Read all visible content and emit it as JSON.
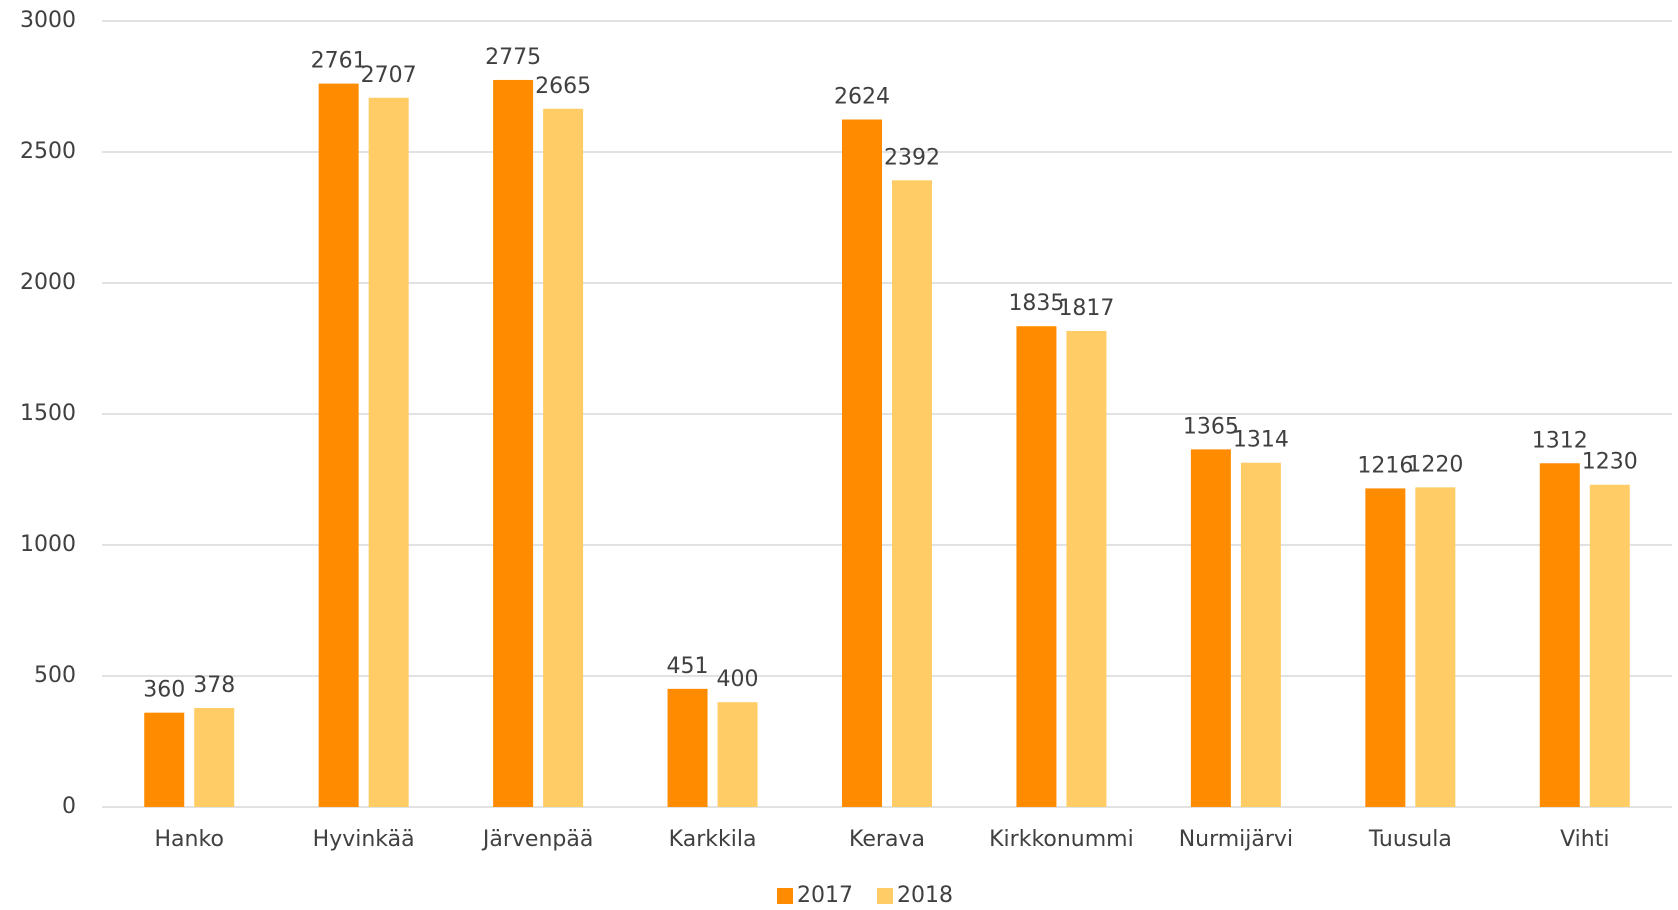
{
  "chart_data": {
    "type": "bar",
    "categories": [
      "Hanko",
      "Hyvinkää",
      "Järvenpää",
      "Karkkila",
      "Kerava",
      "Kirkkonummi",
      "Nurmijärvi",
      "Tuusula",
      "Vihti"
    ],
    "series": [
      {
        "name": "2017",
        "color": "#ff8c00",
        "values": [
          360,
          2761,
          2775,
          451,
          2624,
          1835,
          1365,
          1216,
          1312
        ]
      },
      {
        "name": "2018",
        "color": "#ffcc66",
        "values": [
          378,
          2707,
          2665,
          400,
          2392,
          1817,
          1314,
          1220,
          1230
        ]
      }
    ],
    "ylim": [
      0,
      3000
    ],
    "yticks": [
      0,
      500,
      1000,
      1500,
      2000,
      2500,
      3000
    ],
    "grid": true,
    "legend": "bottom"
  }
}
